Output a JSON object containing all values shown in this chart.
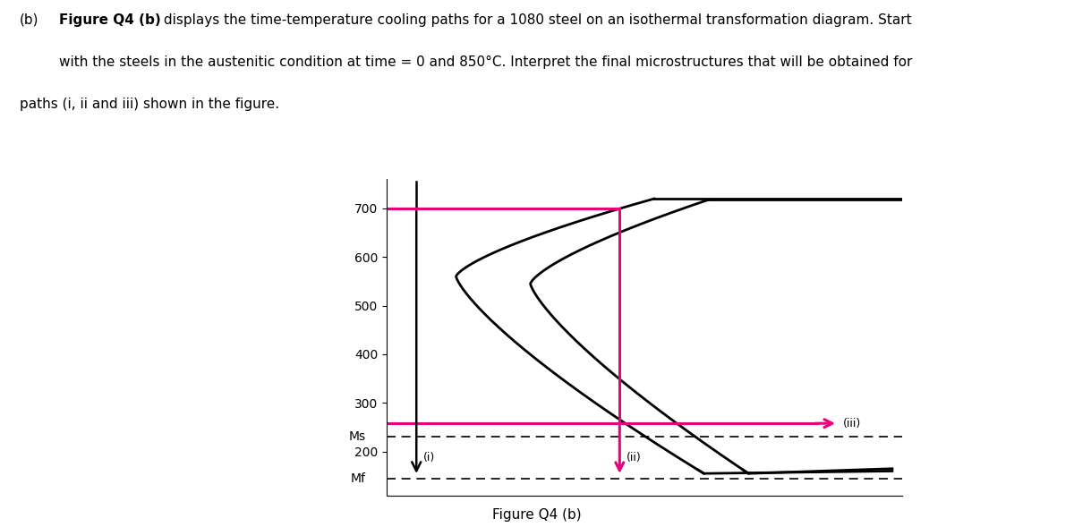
{
  "title": "Figure Q4 (b)",
  "Ms_temp": 230,
  "Mf_temp": 145,
  "y_ticks": [
    200,
    300,
    400,
    500,
    600,
    700
  ],
  "Ms_label": "Ms",
  "Mf_label": "Mf",
  "pink_color": "#E8007D",
  "black_color": "#000000",
  "background": "#ffffff",
  "fig_width": 12.0,
  "fig_height": 5.89,
  "dpi": 100,
  "y_min": 110,
  "y_max": 760,
  "x_min": 0.0,
  "x_max": 5.2,
  "T_iii": 258,
  "t_ii_hold": 2.35,
  "T_ii_hold": 700,
  "t_i": 0.3,
  "curve1_nose_t": 0.7,
  "curve1_nose_T": 560,
  "curve2_nose_t": 1.45,
  "curve2_nose_T": 545
}
